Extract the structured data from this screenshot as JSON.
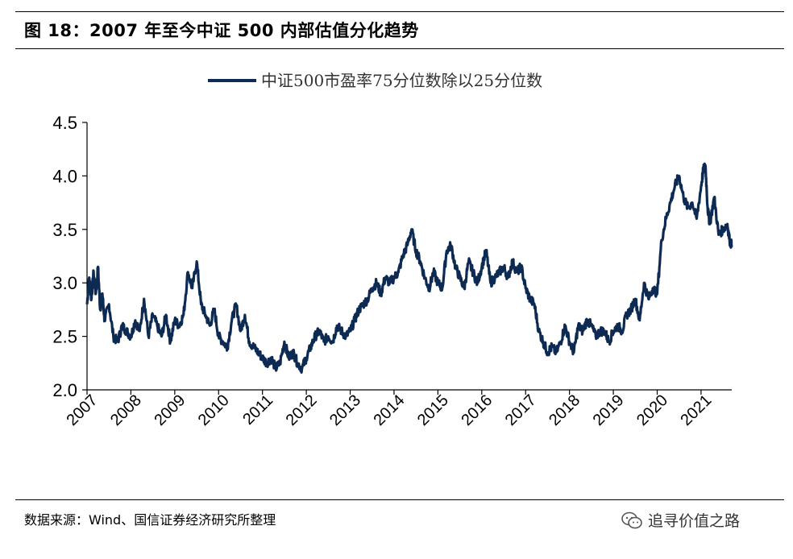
{
  "figure": {
    "title": "图 18：2007 年至今中证 500 内部估值分化趋势",
    "source": "数据来源：Wind、国信证券经济研究所整理",
    "watermark": "追寻价值之路",
    "watermark_icon": "wechat-icon"
  },
  "chart_data": {
    "type": "line",
    "title": "",
    "xlabel": "",
    "ylabel": "",
    "legend_position": "top-center",
    "grid": false,
    "line_color": "#0d2a52",
    "ylim": [
      2.0,
      4.5
    ],
    "yticks": [
      "2.0",
      "2.5",
      "3.0",
      "3.5",
      "4.0",
      "4.5"
    ],
    "xticks": [
      "2007",
      "2008",
      "2009",
      "2010",
      "2011",
      "2012",
      "2013",
      "2014",
      "2015",
      "2016",
      "2017",
      "2018",
      "2019",
      "2020",
      "2021"
    ],
    "xlim": [
      2007.0,
      2021.7
    ],
    "series": [
      {
        "name": "中证500市盈率75分位数除以25分位数",
        "x": [
          2007.0,
          2007.05,
          2007.1,
          2007.15,
          2007.2,
          2007.25,
          2007.3,
          2007.35,
          2007.4,
          2007.5,
          2007.6,
          2007.7,
          2007.8,
          2007.9,
          2008.0,
          2008.1,
          2008.2,
          2008.3,
          2008.4,
          2008.5,
          2008.6,
          2008.7,
          2008.8,
          2008.9,
          2009.0,
          2009.1,
          2009.2,
          2009.3,
          2009.4,
          2009.5,
          2009.6,
          2009.7,
          2009.8,
          2009.9,
          2010.0,
          2010.1,
          2010.2,
          2010.3,
          2010.4,
          2010.5,
          2010.6,
          2010.7,
          2010.8,
          2010.9,
          2011.0,
          2011.1,
          2011.2,
          2011.3,
          2011.4,
          2011.5,
          2011.6,
          2011.7,
          2011.8,
          2011.9,
          2012.0,
          2012.1,
          2012.2,
          2012.3,
          2012.4,
          2012.5,
          2012.6,
          2012.7,
          2012.8,
          2012.9,
          2013.0,
          2013.1,
          2013.2,
          2013.3,
          2013.4,
          2013.5,
          2013.6,
          2013.7,
          2013.8,
          2013.9,
          2014.0,
          2014.1,
          2014.2,
          2014.3,
          2014.4,
          2014.5,
          2014.6,
          2014.7,
          2014.8,
          2014.9,
          2015.0,
          2015.1,
          2015.2,
          2015.3,
          2015.4,
          2015.5,
          2015.6,
          2015.7,
          2015.8,
          2015.9,
          2016.0,
          2016.1,
          2016.2,
          2016.3,
          2016.4,
          2016.5,
          2016.6,
          2016.7,
          2016.8,
          2016.9,
          2017.0,
          2017.1,
          2017.2,
          2017.3,
          2017.4,
          2017.5,
          2017.6,
          2017.7,
          2017.8,
          2017.9,
          2018.0,
          2018.1,
          2018.2,
          2018.3,
          2018.4,
          2018.5,
          2018.6,
          2018.7,
          2018.8,
          2018.9,
          2019.0,
          2019.1,
          2019.2,
          2019.3,
          2019.4,
          2019.5,
          2019.6,
          2019.7,
          2019.8,
          2019.9,
          2020.0,
          2020.1,
          2020.2,
          2020.3,
          2020.4,
          2020.5,
          2020.6,
          2020.7,
          2020.8,
          2020.9,
          2021.0,
          2021.05,
          2021.1,
          2021.15,
          2021.2,
          2021.3,
          2021.4,
          2021.5,
          2021.6,
          2021.65,
          2021.7
        ],
        "values": [
          2.8,
          3.05,
          2.85,
          3.1,
          2.9,
          3.15,
          2.75,
          2.9,
          2.65,
          2.8,
          2.5,
          2.45,
          2.6,
          2.55,
          2.5,
          2.65,
          2.55,
          2.85,
          2.5,
          2.7,
          2.6,
          2.5,
          2.7,
          2.45,
          2.65,
          2.6,
          2.7,
          3.1,
          2.95,
          3.2,
          2.8,
          2.7,
          2.6,
          2.75,
          2.5,
          2.45,
          2.4,
          2.65,
          2.8,
          2.55,
          2.7,
          2.45,
          2.4,
          2.35,
          2.3,
          2.25,
          2.3,
          2.2,
          2.25,
          2.45,
          2.3,
          2.35,
          2.25,
          2.2,
          2.3,
          2.4,
          2.5,
          2.55,
          2.45,
          2.5,
          2.45,
          2.6,
          2.55,
          2.5,
          2.55,
          2.65,
          2.75,
          2.8,
          2.85,
          2.95,
          3.0,
          2.9,
          3.05,
          3.0,
          3.05,
          3.1,
          3.25,
          3.35,
          3.5,
          3.3,
          3.2,
          3.05,
          2.95,
          3.1,
          3.0,
          2.95,
          3.3,
          3.35,
          3.15,
          3.05,
          2.95,
          3.2,
          3.1,
          3.0,
          3.15,
          3.3,
          3.0,
          3.05,
          3.1,
          3.15,
          3.05,
          3.2,
          3.1,
          3.15,
          2.95,
          2.85,
          2.8,
          2.55,
          2.45,
          2.35,
          2.4,
          2.35,
          2.45,
          2.6,
          2.45,
          2.35,
          2.6,
          2.55,
          2.65,
          2.6,
          2.5,
          2.55,
          2.55,
          2.45,
          2.55,
          2.6,
          2.55,
          2.7,
          2.75,
          2.85,
          2.65,
          3.0,
          2.85,
          2.95,
          2.9,
          3.4,
          3.6,
          3.75,
          3.9,
          4.0,
          3.8,
          3.7,
          3.75,
          3.6,
          3.9,
          4.05,
          4.1,
          3.7,
          3.55,
          3.8,
          3.45,
          3.5,
          3.55,
          3.4,
          3.35
        ]
      }
    ]
  }
}
